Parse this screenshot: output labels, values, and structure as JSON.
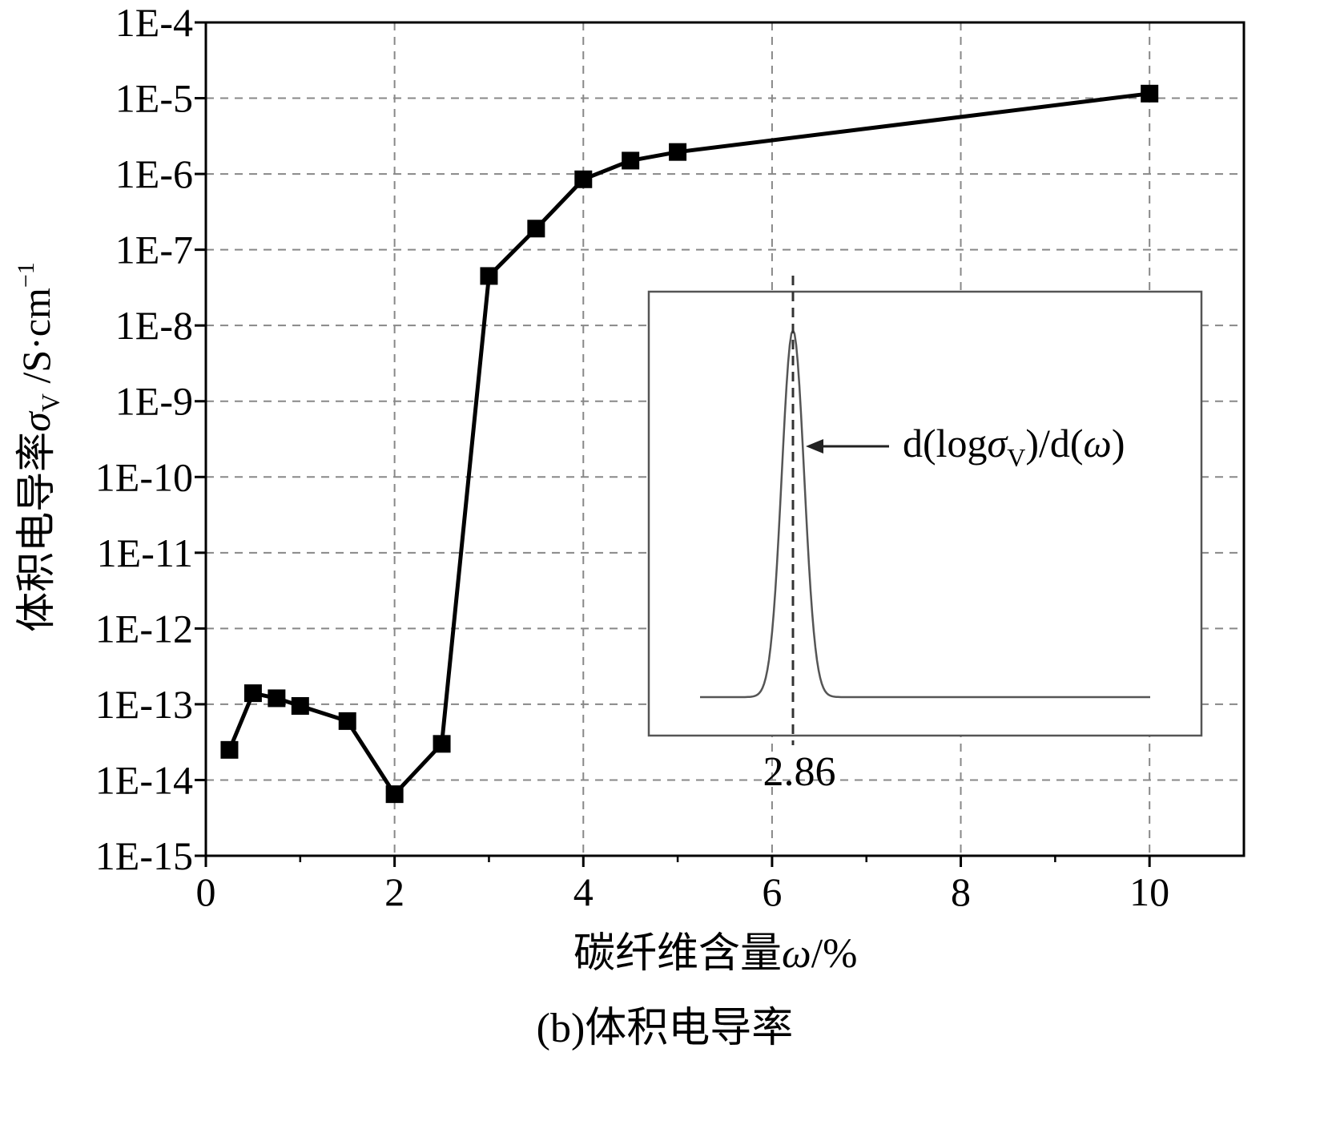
{
  "chart_data": {
    "type": "line",
    "title": "",
    "caption": "(b)体积电导率",
    "xlabel": {
      "main": "碳纤维含量",
      "sym": "ω",
      "unit": "/%"
    },
    "ylabel": {
      "main": "体积电导率",
      "sym": "σ",
      "sub": "V",
      "unit": " /S·cm",
      "sup": "−1"
    },
    "xlim": [
      0,
      11
    ],
    "ylim_log10": [
      -15,
      -4
    ],
    "y_scale": "log",
    "grid": true,
    "x_ticks": [
      0,
      2,
      4,
      6,
      8,
      10
    ],
    "x_tick_labels": [
      "0",
      "2",
      "4",
      "6",
      "8",
      "10"
    ],
    "y_ticks_log10": [
      -15,
      -14,
      -13,
      -12,
      -11,
      -10,
      -9,
      -8,
      -7,
      -6,
      -5,
      -4
    ],
    "y_tick_labels": [
      "1E-15",
      "1E-14",
      "1E-13",
      "1E-12",
      "1E-11",
      "1E-10",
      "1E-9",
      "1E-8",
      "1E-7",
      "1E-6",
      "1E-5",
      "1E-4"
    ],
    "series": [
      {
        "marker": "square",
        "color": "#000000",
        "x": [
          0.25,
          0.5,
          0.75,
          1.0,
          1.5,
          2.0,
          2.5,
          3.0,
          3.5,
          4.0,
          4.5,
          5.0,
          10.0
        ],
        "y": [
          2.5e-14,
          1.4e-13,
          1.2e-13,
          9.5e-14,
          6e-14,
          6.5e-15,
          3e-14,
          4.5e-08,
          1.9e-07,
          8.5e-07,
          1.5e-06,
          1.95e-06,
          1.15e-05
        ]
      }
    ],
    "inset": {
      "type": "line",
      "description_label": {
        "prefix": "d(log",
        "sym": "σ",
        "sub": "V",
        "mid": ")/d(",
        "sym2": "ω",
        "suffix": ")"
      },
      "peak_x": 2.86,
      "peak_label": "2.86"
    }
  }
}
